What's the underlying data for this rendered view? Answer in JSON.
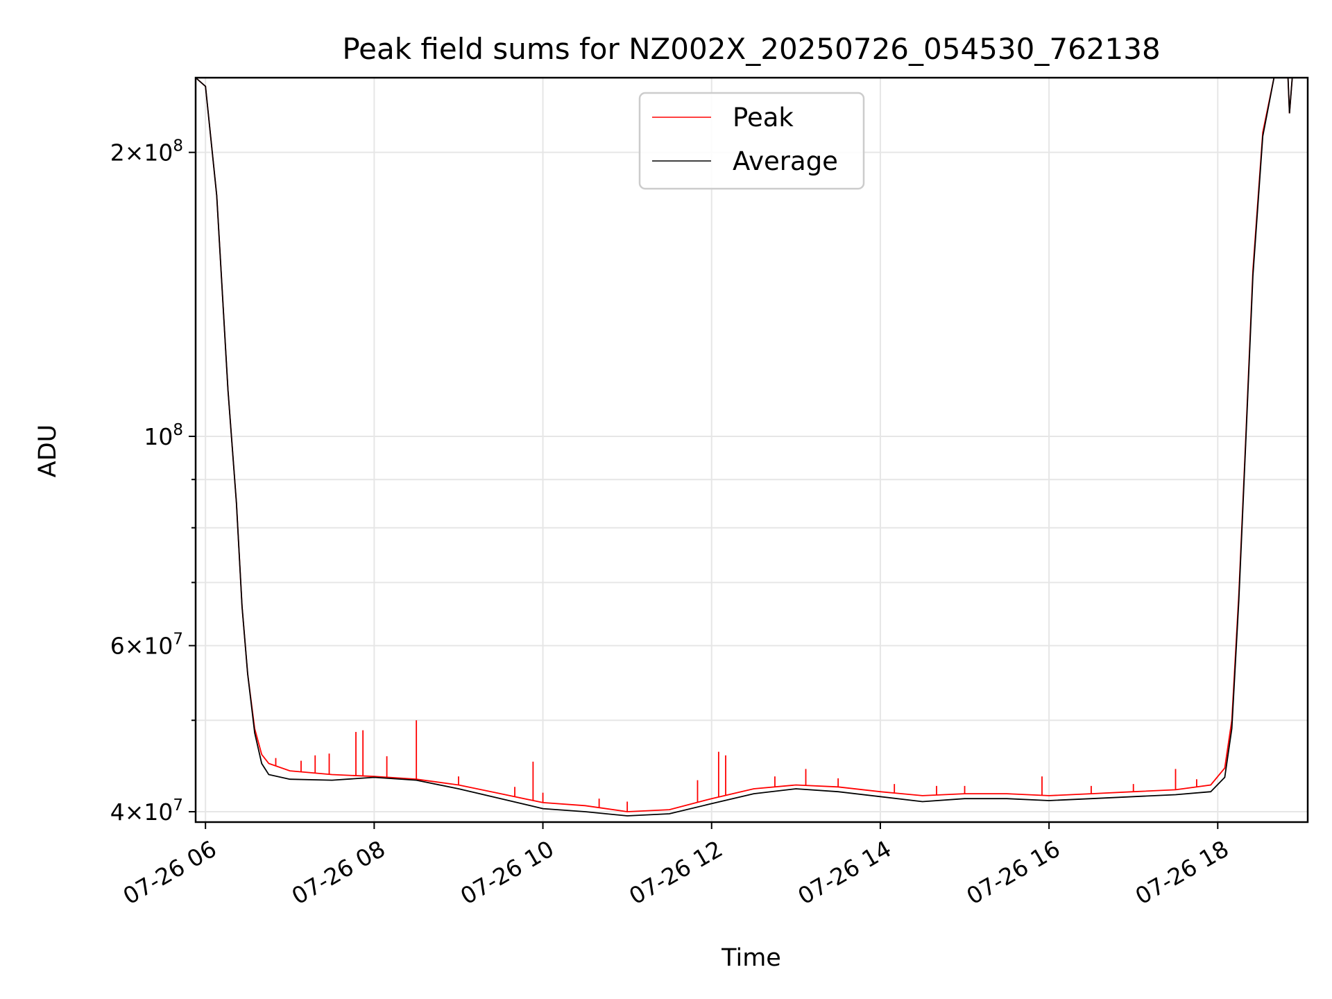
{
  "chart_data": {
    "type": "line",
    "title": "Peak field sums for NZ002X_20250726_054530_762138",
    "xlabel": "Time",
    "ylabel": "ADU",
    "y_scale": "log",
    "grid": true,
    "legend_position": "upper center",
    "xlim": [
      "2025-07-26 05:53",
      "2025-07-26 19:04"
    ],
    "ylim": [
      39000000,
      240000000
    ],
    "x_ticks": [
      {
        "value": "2025-07-26 06:00",
        "label": "07-26 06"
      },
      {
        "value": "2025-07-26 08:00",
        "label": "07-26 08"
      },
      {
        "value": "2025-07-26 10:00",
        "label": "07-26 10"
      },
      {
        "value": "2025-07-26 12:00",
        "label": "07-26 12"
      },
      {
        "value": "2025-07-26 14:00",
        "label": "07-26 14"
      },
      {
        "value": "2025-07-26 16:00",
        "label": "07-26 16"
      },
      {
        "value": "2025-07-26 18:00",
        "label": "07-26 18"
      }
    ],
    "y_major_ticks": [
      {
        "value": 40000000,
        "base": "4",
        "exp": "7"
      },
      {
        "value": 60000000,
        "base": "6",
        "exp": "7"
      },
      {
        "value": 100000000,
        "base": "",
        "exp": "8"
      },
      {
        "value": 200000000,
        "base": "2",
        "exp": "8"
      }
    ],
    "y_minor_ticks": [
      50000000,
      70000000,
      80000000,
      90000000
    ],
    "series": [
      {
        "name": "Peak",
        "color": "#ff0000",
        "points": [
          [
            "2025-07-26 05:53",
            240000000
          ],
          [
            "2025-07-26 06:00",
            235000000
          ],
          [
            "2025-07-26 06:08",
            180000000
          ],
          [
            "2025-07-26 06:16",
            112000000
          ],
          [
            "2025-07-26 06:22",
            85000000
          ],
          [
            "2025-07-26 06:26",
            66000000
          ],
          [
            "2025-07-26 06:30",
            56000000
          ],
          [
            "2025-07-26 06:35",
            49000000
          ],
          [
            "2025-07-26 06:40",
            46000000
          ],
          [
            "2025-07-26 06:45",
            45000000
          ],
          [
            "2025-07-26 07:00",
            44200000
          ],
          [
            "2025-07-26 07:30",
            43800000
          ],
          [
            "2025-07-26 08:00",
            43600000
          ],
          [
            "2025-07-26 08:30",
            43300000
          ],
          [
            "2025-07-26 09:00",
            42700000
          ],
          [
            "2025-07-26 09:30",
            41800000
          ],
          [
            "2025-07-26 10:00",
            40900000
          ],
          [
            "2025-07-26 10:30",
            40600000
          ],
          [
            "2025-07-26 11:00",
            40000000
          ],
          [
            "2025-07-26 11:30",
            40200000
          ],
          [
            "2025-07-26 12:00",
            41300000
          ],
          [
            "2025-07-26 12:30",
            42300000
          ],
          [
            "2025-07-26 13:00",
            42700000
          ],
          [
            "2025-07-26 13:30",
            42500000
          ],
          [
            "2025-07-26 14:00",
            42000000
          ],
          [
            "2025-07-26 14:30",
            41600000
          ],
          [
            "2025-07-26 15:00",
            41800000
          ],
          [
            "2025-07-26 15:30",
            41800000
          ],
          [
            "2025-07-26 16:00",
            41600000
          ],
          [
            "2025-07-26 16:30",
            41800000
          ],
          [
            "2025-07-26 17:00",
            42000000
          ],
          [
            "2025-07-26 17:30",
            42200000
          ],
          [
            "2025-07-26 17:55",
            42700000
          ],
          [
            "2025-07-26 18:05",
            44500000
          ],
          [
            "2025-07-26 18:10",
            50000000
          ],
          [
            "2025-07-26 18:15",
            68000000
          ],
          [
            "2025-07-26 18:20",
            100000000
          ],
          [
            "2025-07-26 18:25",
            150000000
          ],
          [
            "2025-07-26 18:32",
            210000000
          ],
          [
            "2025-07-26 18:40",
            240000000
          ],
          [
            "2025-07-26 18:50",
            240000000
          ],
          [
            "2025-07-26 18:51",
            220000000
          ],
          [
            "2025-07-26 18:53",
            240000000
          ],
          [
            "2025-07-26 19:04",
            240000000
          ]
        ],
        "spikes": [
          [
            "2025-07-26 06:50",
            45600000
          ],
          [
            "2025-07-26 07:08",
            45300000
          ],
          [
            "2025-07-26 07:18",
            45900000
          ],
          [
            "2025-07-26 07:28",
            46100000
          ],
          [
            "2025-07-26 07:47",
            48600000
          ],
          [
            "2025-07-26 07:52",
            48800000
          ],
          [
            "2025-07-26 08:09",
            45800000
          ],
          [
            "2025-07-26 08:30",
            50000000
          ],
          [
            "2025-07-26 09:00",
            43600000
          ],
          [
            "2025-07-26 09:40",
            42500000
          ],
          [
            "2025-07-26 09:53",
            45200000
          ],
          [
            "2025-07-26 10:00",
            41900000
          ],
          [
            "2025-07-26 10:40",
            41300000
          ],
          [
            "2025-07-26 11:00",
            41000000
          ],
          [
            "2025-07-26 11:50",
            43200000
          ],
          [
            "2025-07-26 12:05",
            46300000
          ],
          [
            "2025-07-26 12:10",
            45900000
          ],
          [
            "2025-07-26 12:45",
            43600000
          ],
          [
            "2025-07-26 13:07",
            44400000
          ],
          [
            "2025-07-26 13:30",
            43400000
          ],
          [
            "2025-07-26 14:10",
            42800000
          ],
          [
            "2025-07-26 14:40",
            42600000
          ],
          [
            "2025-07-26 15:00",
            42600000
          ],
          [
            "2025-07-26 15:55",
            43600000
          ],
          [
            "2025-07-26 16:30",
            42600000
          ],
          [
            "2025-07-26 17:00",
            42800000
          ],
          [
            "2025-07-26 17:30",
            44400000
          ],
          [
            "2025-07-26 17:45",
            43300000
          ]
        ]
      },
      {
        "name": "Average",
        "color": "#000000",
        "points": [
          [
            "2025-07-26 05:53",
            240000000
          ],
          [
            "2025-07-26 06:00",
            235000000
          ],
          [
            "2025-07-26 06:08",
            180000000
          ],
          [
            "2025-07-26 06:16",
            112000000
          ],
          [
            "2025-07-26 06:22",
            85000000
          ],
          [
            "2025-07-26 06:26",
            66000000
          ],
          [
            "2025-07-26 06:30",
            56000000
          ],
          [
            "2025-07-26 06:35",
            48500000
          ],
          [
            "2025-07-26 06:40",
            45000000
          ],
          [
            "2025-07-26 06:45",
            43800000
          ],
          [
            "2025-07-26 07:00",
            43300000
          ],
          [
            "2025-07-26 07:30",
            43200000
          ],
          [
            "2025-07-26 08:00",
            43500000
          ],
          [
            "2025-07-26 08:30",
            43200000
          ],
          [
            "2025-07-26 09:00",
            42300000
          ],
          [
            "2025-07-26 09:30",
            41300000
          ],
          [
            "2025-07-26 10:00",
            40300000
          ],
          [
            "2025-07-26 10:30",
            40000000
          ],
          [
            "2025-07-26 11:00",
            39600000
          ],
          [
            "2025-07-26 11:30",
            39800000
          ],
          [
            "2025-07-26 12:00",
            40800000
          ],
          [
            "2025-07-26 12:30",
            41800000
          ],
          [
            "2025-07-26 13:00",
            42300000
          ],
          [
            "2025-07-26 13:30",
            42000000
          ],
          [
            "2025-07-26 14:00",
            41500000
          ],
          [
            "2025-07-26 14:30",
            41000000
          ],
          [
            "2025-07-26 15:00",
            41300000
          ],
          [
            "2025-07-26 15:30",
            41300000
          ],
          [
            "2025-07-26 16:00",
            41100000
          ],
          [
            "2025-07-26 16:30",
            41300000
          ],
          [
            "2025-07-26 17:00",
            41500000
          ],
          [
            "2025-07-26 17:30",
            41700000
          ],
          [
            "2025-07-26 17:55",
            42000000
          ],
          [
            "2025-07-26 18:05",
            43500000
          ],
          [
            "2025-07-26 18:10",
            49000000
          ],
          [
            "2025-07-26 18:15",
            67000000
          ],
          [
            "2025-07-26 18:20",
            99000000
          ],
          [
            "2025-07-26 18:25",
            148000000
          ],
          [
            "2025-07-26 18:32",
            208000000
          ],
          [
            "2025-07-26 18:40",
            240000000
          ],
          [
            "2025-07-26 18:50",
            240000000
          ],
          [
            "2025-07-26 18:51",
            220000000
          ],
          [
            "2025-07-26 18:53",
            240000000
          ],
          [
            "2025-07-26 19:04",
            240000000
          ]
        ]
      }
    ]
  }
}
